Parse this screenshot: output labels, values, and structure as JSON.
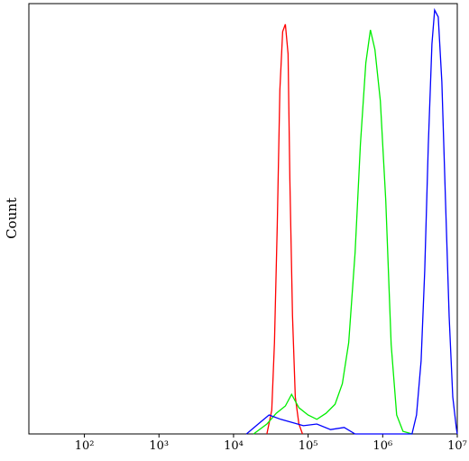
{
  "chart_data": {
    "type": "line",
    "y_label": "Count",
    "xscale": "log",
    "xlim": [
      18,
      10000000
    ],
    "ylim": [
      0,
      100
    ],
    "xticks": [
      {
        "value": 100,
        "label": "10²"
      },
      {
        "value": 1000,
        "label": "10³"
      },
      {
        "value": 10000,
        "label": "10⁴"
      },
      {
        "value": 100000,
        "label": "10⁵"
      },
      {
        "value": 1000000,
        "label": "10⁶"
      },
      {
        "value": 10000000,
        "label": "10⁷"
      }
    ],
    "series": [
      {
        "color": "#ff0000",
        "x": [
          28000,
          32500,
          35400,
          38500,
          41800,
          45500,
          49500,
          53800,
          56900,
          61800,
          67300,
          75200,
          84100
        ],
        "values": [
          0,
          5.5,
          21.2,
          48.4,
          79.9,
          93.5,
          95.2,
          88.3,
          58.9,
          27.5,
          8.6,
          2.3,
          0
        ]
      },
      {
        "color": "#00ee00",
        "x": [
          18600,
          28000,
          37400,
          49500,
          60100,
          75200,
          99500,
          131000,
          174000,
          230000,
          288000,
          350000,
          426000,
          503000,
          594000,
          684000,
          787000,
          930000,
          1100000,
          1300000,
          1540000,
          1870000,
          2470000
        ],
        "values": [
          0,
          2.3,
          4.8,
          6.5,
          9.2,
          6.1,
          4.4,
          3.4,
          4.8,
          6.9,
          11.7,
          21.2,
          42.1,
          67.3,
          86.2,
          93.9,
          89.3,
          77.4,
          54.3,
          20.8,
          4.4,
          0.6,
          0
        ]
      },
      {
        "color": "#0000ff",
        "x": [
          14900,
          21400,
          29900,
          43000,
          60100,
          86500,
          131000,
          200000,
          304000,
          426000,
          2470000,
          2840000,
          3270000,
          3660000,
          4090000,
          4570000,
          4970000,
          5560000,
          6220000,
          6950000,
          7780000,
          8690000,
          9720000,
          10000000
        ],
        "values": [
          0,
          2.3,
          4.4,
          3.4,
          2.7,
          1.9,
          2.3,
          1.0,
          1.5,
          0,
          0,
          4.4,
          17.0,
          37.9,
          67.3,
          90.6,
          98.5,
          96.9,
          81.8,
          54.5,
          27.3,
          8.6,
          1.3,
          0
        ]
      }
    ]
  }
}
